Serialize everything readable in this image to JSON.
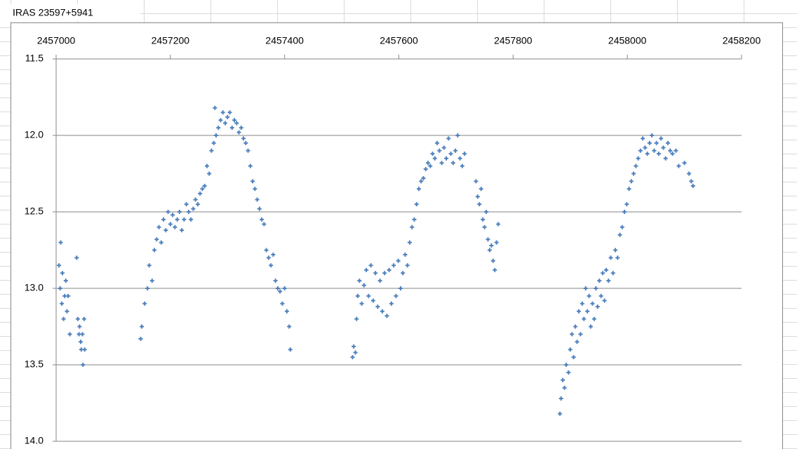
{
  "chart_data": {
    "type": "scatter",
    "title": "IRAS 23597+5941",
    "xlim": [
      2457000,
      2458200
    ],
    "xticks": [
      2457000,
      2457200,
      2457400,
      2457600,
      2457800,
      2458000,
      2458200
    ],
    "xaxis_position": "top",
    "ylim": [
      11.5,
      14.0
    ],
    "y_reversed": true,
    "yticks": [
      11.5,
      {
        "value": 12,
        "label": "12.0"
      },
      12.5,
      {
        "value": 13,
        "label": "13.0"
      },
      13.5,
      {
        "value": 14,
        "label": "14.0"
      }
    ],
    "grid": true,
    "color": "#4f81bd",
    "marker": "plus",
    "x": [
      2457005,
      2457007,
      2457008,
      2457010,
      2457011,
      2457013,
      2457015,
      2457017,
      2457019,
      2457021,
      2457024,
      2457036,
      2457038,
      2457040,
      2457041,
      2457043,
      2457044,
      2457046,
      2457047,
      2457049,
      2457050,
      2457148,
      2457150,
      2457155,
      2457160,
      2457163,
      2457168,
      2457172,
      2457176,
      2457180,
      2457184,
      2457188,
      2457192,
      2457196,
      2457200,
      2457204,
      2457208,
      2457212,
      2457216,
      2457220,
      2457224,
      2457228,
      2457232,
      2457236,
      2457240,
      2457244,
      2457248,
      2457252,
      2457256,
      2457260,
      2457264,
      2457268,
      2457272,
      2457276,
      2457278,
      2457280,
      2457284,
      2457288,
      2457292,
      2457296,
      2457300,
      2457304,
      2457308,
      2457312,
      2457316,
      2457320,
      2457324,
      2457328,
      2457332,
      2457336,
      2457340,
      2457344,
      2457348,
      2457352,
      2457356,
      2457360,
      2457364,
      2457368,
      2457372,
      2457376,
      2457380,
      2457384,
      2457388,
      2457392,
      2457396,
      2457400,
      2457404,
      2457408,
      2457410,
      2457519,
      2457521,
      2457524,
      2457526,
      2457528,
      2457531,
      2457535,
      2457539,
      2457543,
      2457547,
      2457551,
      2457555,
      2457559,
      2457563,
      2457567,
      2457571,
      2457575,
      2457579,
      2457583,
      2457587,
      2457591,
      2457595,
      2457599,
      2457603,
      2457607,
      2457611,
      2457615,
      2457619,
      2457623,
      2457627,
      2457631,
      2457635,
      2457639,
      2457643,
      2457647,
      2457651,
      2457655,
      2457659,
      2457663,
      2457667,
      2457671,
      2457675,
      2457679,
      2457683,
      2457687,
      2457691,
      2457695,
      2457699,
      2457703,
      2457707,
      2457711,
      2457715,
      2457735,
      2457738,
      2457741,
      2457744,
      2457747,
      2457750,
      2457753,
      2457756,
      2457759,
      2457762,
      2457765,
      2457768,
      2457771,
      2457774,
      2457882,
      2457884,
      2457887,
      2457890,
      2457893,
      2457897,
      2457900,
      2457903,
      2457906,
      2457909,
      2457912,
      2457915,
      2457918,
      2457921,
      2457924,
      2457927,
      2457930,
      2457933,
      2457936,
      2457939,
      2457942,
      2457945,
      2457948,
      2457951,
      2457954,
      2457957,
      2457960,
      2457963,
      2457967,
      2457971,
      2457975,
      2457979,
      2457983,
      2457987,
      2457991,
      2457995,
      2457999,
      2458003,
      2458007,
      2458011,
      2458015,
      2458019,
      2458023,
      2458027,
      2458031,
      2458035,
      2458039,
      2458043,
      2458047,
      2458051,
      2458055,
      2458059,
      2458063,
      2458067,
      2458071,
      2458075,
      2458079,
      2458085,
      2458090,
      2458100,
      2458108,
      2458112,
      2458115
    ],
    "values": [
      12.85,
      13.0,
      12.7,
      13.1,
      12.9,
      13.2,
      13.05,
      12.95,
      13.15,
      13.05,
      13.3,
      12.8,
      13.2,
      13.3,
      13.25,
      13.35,
      13.4,
      13.3,
      13.5,
      13.2,
      13.4,
      13.33,
      13.25,
      13.1,
      13.0,
      12.85,
      12.95,
      12.75,
      12.68,
      12.6,
      12.7,
      12.55,
      12.62,
      12.5,
      12.58,
      12.52,
      12.6,
      12.55,
      12.5,
      12.62,
      12.55,
      12.45,
      12.5,
      12.55,
      12.48,
      12.42,
      12.45,
      12.38,
      12.35,
      12.33,
      12.2,
      12.25,
      12.1,
      12.05,
      11.82,
      12.0,
      11.95,
      11.9,
      11.85,
      11.92,
      11.88,
      11.85,
      11.95,
      11.9,
      11.92,
      11.98,
      11.95,
      12.02,
      12.05,
      12.1,
      12.2,
      12.3,
      12.35,
      12.42,
      12.48,
      12.55,
      12.58,
      12.75,
      12.8,
      12.85,
      12.78,
      12.95,
      13.0,
      13.02,
      13.1,
      13.0,
      13.15,
      13.25,
      13.4,
      13.45,
      13.38,
      13.42,
      13.2,
      13.05,
      12.95,
      13.1,
      12.98,
      12.88,
      13.05,
      12.85,
      13.08,
      12.9,
      13.12,
      12.95,
      13.15,
      12.9,
      13.18,
      12.88,
      13.1,
      12.85,
      13.05,
      12.82,
      13.0,
      12.9,
      12.78,
      12.85,
      12.7,
      12.6,
      12.55,
      12.45,
      12.35,
      12.3,
      12.28,
      12.22,
      12.18,
      12.2,
      12.12,
      12.15,
      12.05,
      12.1,
      12.18,
      12.08,
      12.15,
      12.02,
      12.12,
      12.18,
      12.1,
      12.0,
      12.15,
      12.2,
      12.12,
      12.3,
      12.4,
      12.45,
      12.35,
      12.55,
      12.6,
      12.5,
      12.68,
      12.75,
      12.72,
      12.82,
      12.88,
      12.7,
      12.58,
      13.82,
      13.72,
      13.6,
      13.65,
      13.5,
      13.55,
      13.4,
      13.3,
      13.45,
      13.25,
      13.35,
      13.15,
      13.3,
      13.1,
      13.2,
      13.0,
      13.15,
      13.05,
      13.25,
      13.1,
      13.2,
      13.0,
      13.12,
      12.95,
      13.05,
      12.9,
      13.08,
      12.88,
      12.95,
      12.8,
      12.9,
      12.75,
      12.8,
      12.65,
      12.6,
      12.5,
      12.45,
      12.35,
      12.3,
      12.25,
      12.2,
      12.15,
      12.1,
      12.02,
      12.08,
      12.12,
      12.05,
      12.0,
      12.1,
      12.05,
      12.12,
      12.02,
      12.08,
      12.15,
      12.05,
      12.1,
      12.12,
      12.1,
      12.2,
      12.18,
      12.25,
      12.3,
      12.33
    ]
  }
}
